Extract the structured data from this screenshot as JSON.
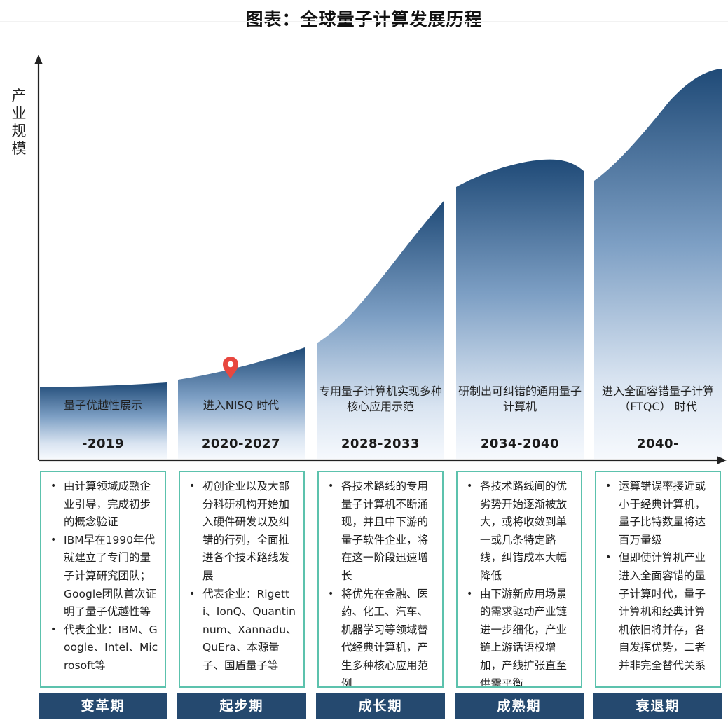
{
  "title": "图表：全球量子计算发展历程",
  "y_axis_label": "产业规模",
  "colors": {
    "curve_dark": "#1f4a77",
    "curve_light": "#eef3fa",
    "box_border": "#5cc2ad",
    "stage_bg": "#25496f",
    "marker": "#e8473f"
  },
  "marker_icon": "location-pin-icon",
  "phases": [
    {
      "description": "量子优越性展示",
      "years": "-2019",
      "stage": "变革期",
      "bullets": [
        "由计算领域成熟企业引导，完成初步的概念验证",
        "IBM早在1990年代就建立了专门的量子计算研究团队； Google团队首次证明了量子优越性等",
        "代表企业：IBM、Google、Intel、Microsoft等"
      ]
    },
    {
      "description": "进入NISQ 时代",
      "years": "2020-2027",
      "stage": "起步期",
      "bullets": [
        "初创企业以及大部分科研机构开始加入硬件研发以及纠错的行列，全面推进各个技术路线发展",
        "代表企业：Rigetti、IonQ、Quantinnum、Xannadu、QuEra、本源量子、国盾量子等"
      ]
    },
    {
      "description": "专用量子计算机实现多种核心应用示范",
      "years": "2028-2033",
      "stage": "成长期",
      "bullets": [
        "各技术路线的专用量子计算机不断涌现，并且中下游的量子软件企业，将在这一阶段迅速增长",
        "将优先在金融、医药、化工、汽车、机器学习等领域替代经典计算机，产生多种核心应用范例"
      ]
    },
    {
      "description": "研制出可纠错的通用量子计算机",
      "years": "2034-2040",
      "stage": "成熟期",
      "bullets": [
        "各技术路线间的优劣势开始逐渐被放大，或将收敛到单一或几条特定路线，纠错成本大幅降低",
        "由下游新应用场景的需求驱动产业链进一步细化，产业链上游话语权增加，产线扩张直至供需平衡"
      ]
    },
    {
      "description": "进入全面容错量子计算 （FTQC） 时代",
      "years": "2040-",
      "stage": "衰退期",
      "bullets": [
        "运算错误率接近或小于经典计算机，量子比特数量将达百万量级",
        "但即使计算机产业进入全面容错的量子计算时代，量子计算机和经典计算机依旧将并存，各自发挥优势，二者并非完全替代关系"
      ]
    }
  ]
}
